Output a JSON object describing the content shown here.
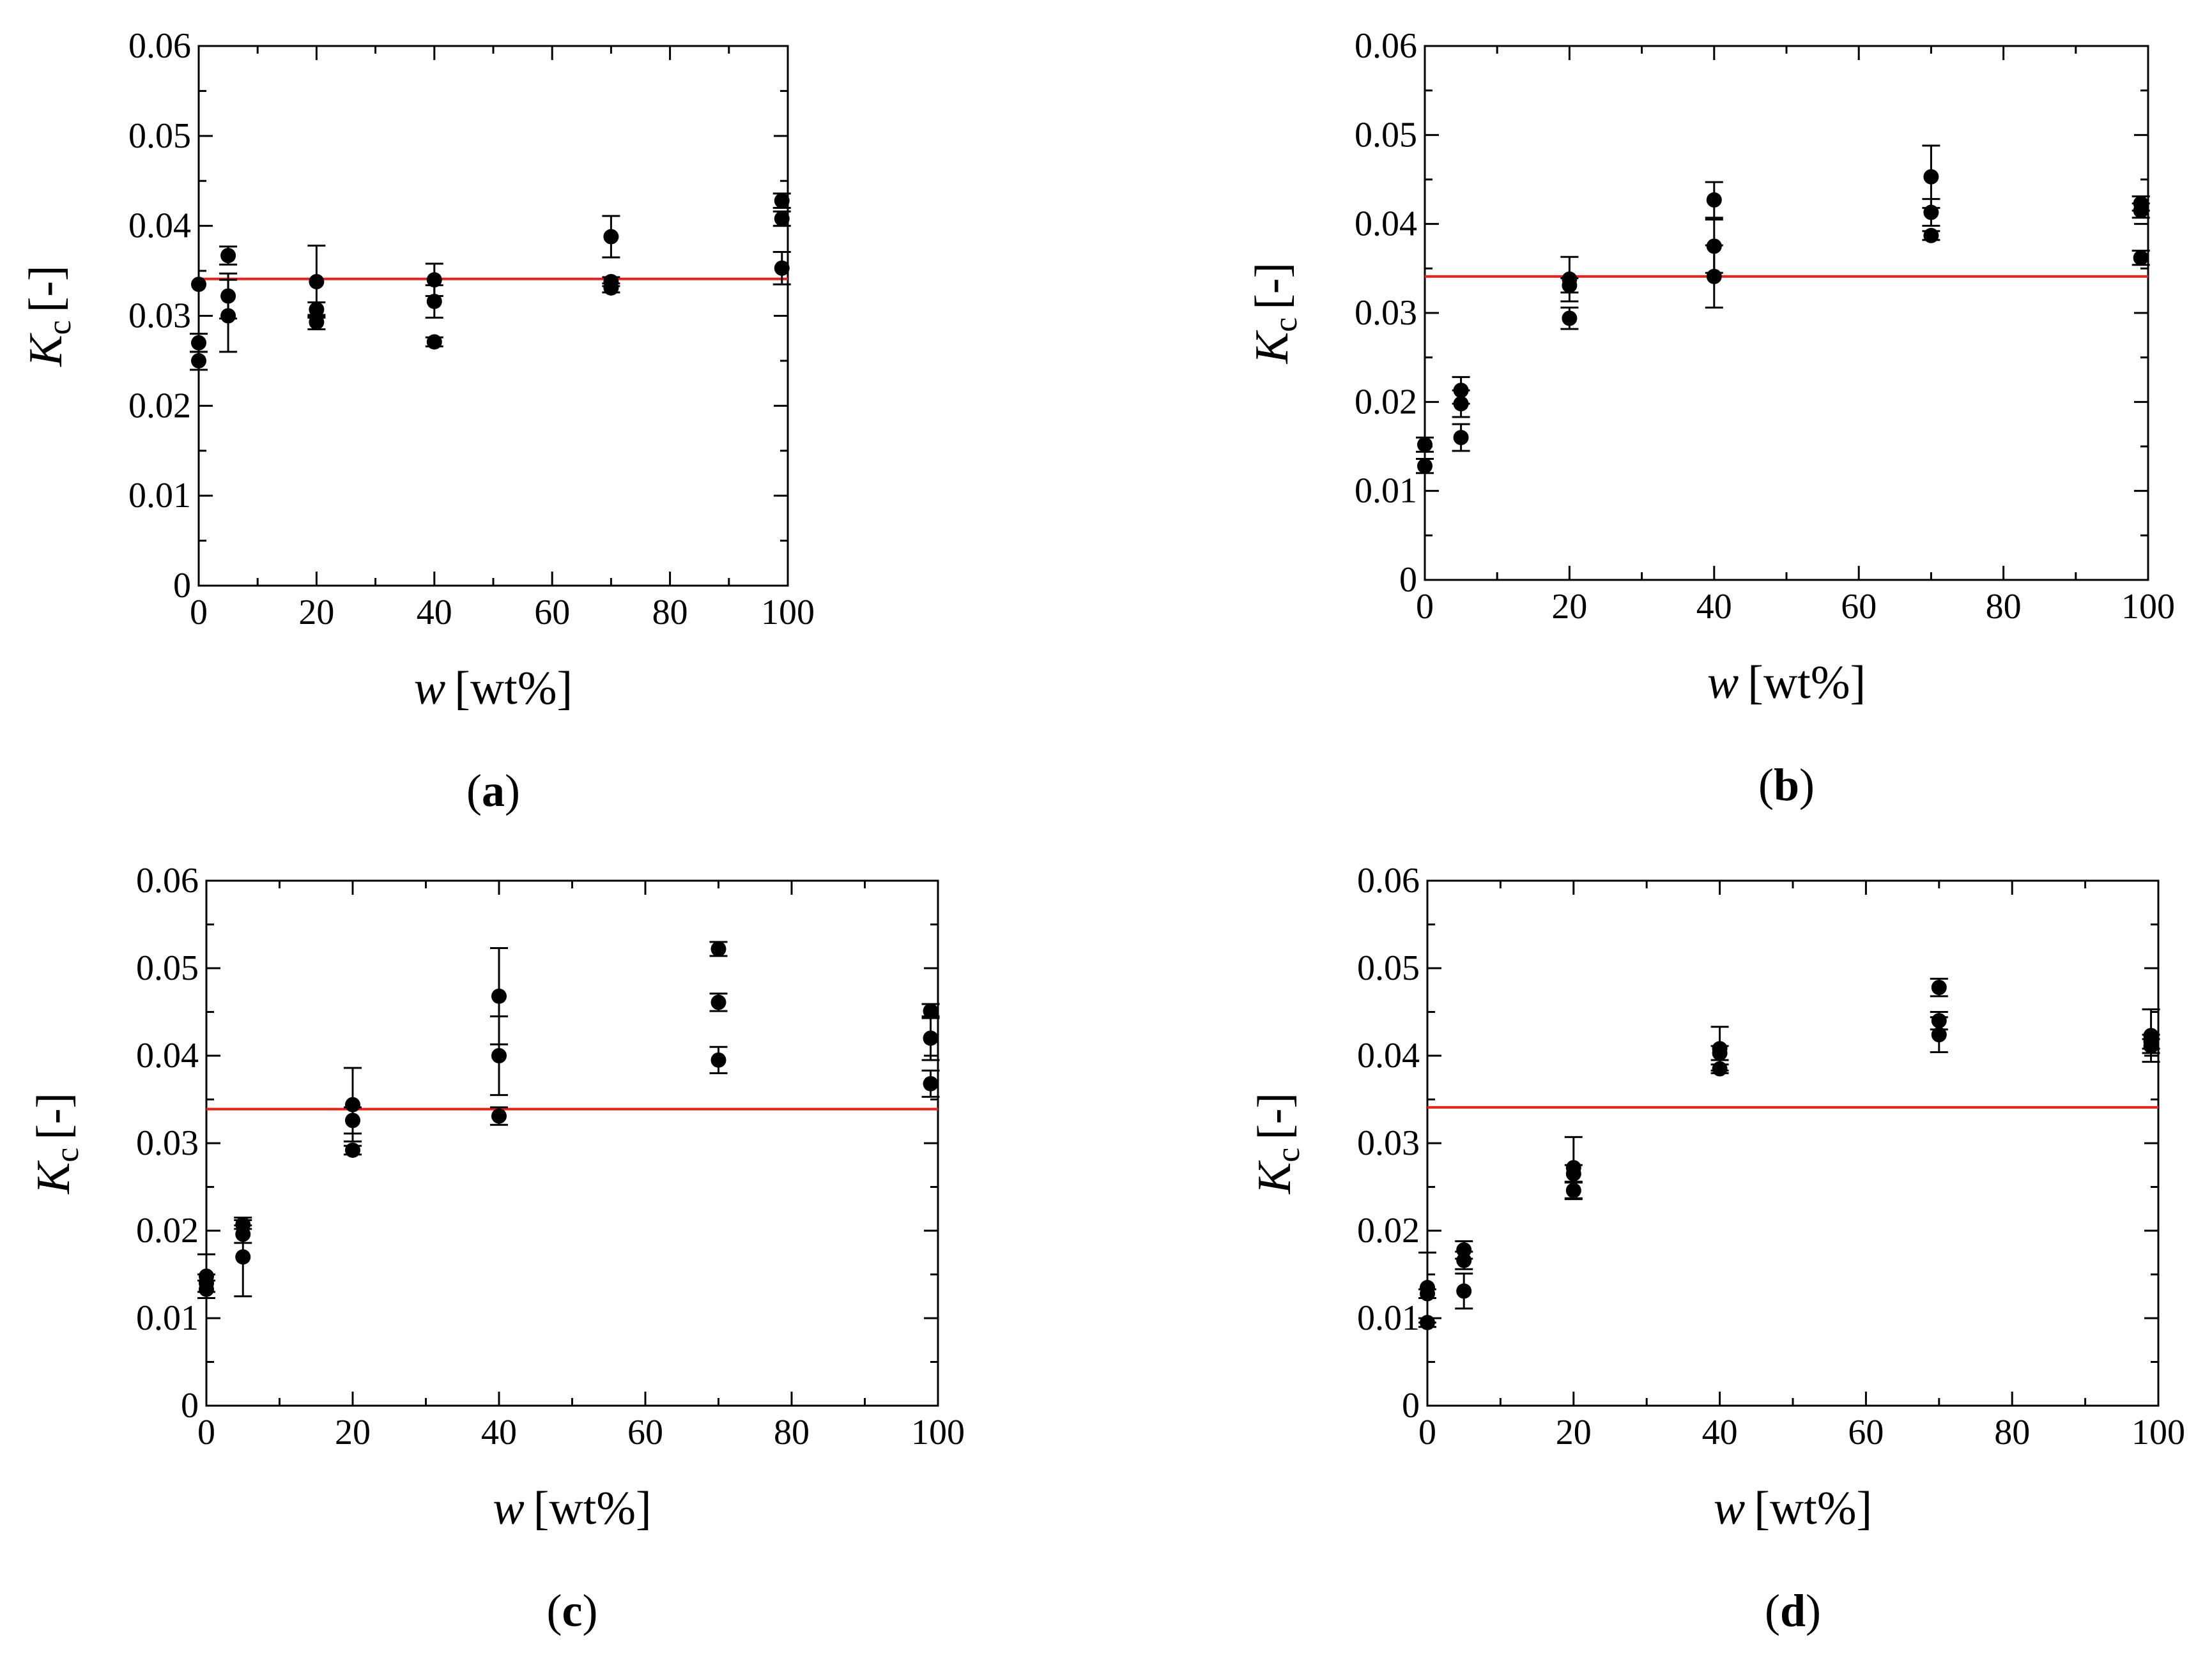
{
  "chart_data": [
    {
      "panel": "a",
      "type": "scatter",
      "caption": {
        "open": "(",
        "label": "a",
        "close": ")"
      },
      "xlabel": {
        "var": "w",
        "unit": "[wt%]"
      },
      "ylabel": {
        "var": "K",
        "sub": "c",
        "unit": "[-]"
      },
      "xlim": [
        0,
        100
      ],
      "ylim": [
        0,
        0.06
      ],
      "xticks": [
        "0",
        "20",
        "40",
        "60",
        "80",
        "100"
      ],
      "yticks": [
        "0",
        "0.01",
        "0.02",
        "0.03",
        "0.04",
        "0.05",
        "0.06"
      ],
      "reference_line": {
        "y": 0.0341,
        "color": "#e8231e"
      },
      "points": [
        {
          "x": 0,
          "y": 0.0335,
          "err": 0
        },
        {
          "x": 0,
          "y": 0.027,
          "err": 0.001
        },
        {
          "x": 0,
          "y": 0.025,
          "err": 0.001
        },
        {
          "x": 5,
          "y": 0.0367,
          "err": 0.001
        },
        {
          "x": 5,
          "y": 0.0322,
          "err": 0.0025
        },
        {
          "x": 5,
          "y": 0.03,
          "err": 0.004
        },
        {
          "x": 20,
          "y": 0.0338,
          "err": 0.004
        },
        {
          "x": 20,
          "y": 0.0307,
          "err": 0.0008
        },
        {
          "x": 20,
          "y": 0.0293,
          "err": 0.0008
        },
        {
          "x": 40,
          "y": 0.034,
          "err": 0.0018
        },
        {
          "x": 40,
          "y": 0.0316,
          "err": 0.0018
        },
        {
          "x": 40,
          "y": 0.0271,
          "err": 0.0005
        },
        {
          "x": 70,
          "y": 0.0388,
          "err": 0.0023
        },
        {
          "x": 70,
          "y": 0.0338,
          "err": 0.0005
        },
        {
          "x": 70,
          "y": 0.0331,
          "err": 0.0005
        },
        {
          "x": 99,
          "y": 0.0428,
          "err": 0.0008
        },
        {
          "x": 99,
          "y": 0.0408,
          "err": 0.0008
        },
        {
          "x": 99,
          "y": 0.0353,
          "err": 0.0018
        }
      ]
    },
    {
      "panel": "b",
      "type": "scatter",
      "caption": {
        "open": "(",
        "label": "b",
        "close": ")"
      },
      "xlabel": {
        "var": "w",
        "unit": "[wt%]"
      },
      "ylabel": {
        "var": "K",
        "sub": "c",
        "unit": "[-]"
      },
      "xlim": [
        0,
        100
      ],
      "ylim": [
        0,
        0.06
      ],
      "xticks": [
        "0",
        "20",
        "40",
        "60",
        "80",
        "100"
      ],
      "yticks": [
        "0",
        "0.01",
        "0.02",
        "0.03",
        "0.04",
        "0.05",
        "0.06"
      ],
      "reference_line": {
        "y": 0.0341,
        "color": "#e8231e"
      },
      "points": [
        {
          "x": 0,
          "y": 0.0152,
          "err": 0.0008
        },
        {
          "x": 0,
          "y": 0.0128,
          "err": 0.0008
        },
        {
          "x": 5,
          "y": 0.0213,
          "err": 0.0015
        },
        {
          "x": 5,
          "y": 0.0198,
          "err": 0.0015
        },
        {
          "x": 5,
          "y": 0.016,
          "err": 0.0015
        },
        {
          "x": 20,
          "y": 0.0338,
          "err": 0.0025
        },
        {
          "x": 20,
          "y": 0.0331,
          "err": 0.0008
        },
        {
          "x": 20,
          "y": 0.0294,
          "err": 0.0012
        },
        {
          "x": 40,
          "y": 0.0427,
          "err": 0.002
        },
        {
          "x": 40,
          "y": 0.0375,
          "err": 0.003
        },
        {
          "x": 40,
          "y": 0.0341,
          "err": 0.0035
        },
        {
          "x": 70,
          "y": 0.0453,
          "err": 0.0035
        },
        {
          "x": 70,
          "y": 0.0413,
          "err": 0.0015
        },
        {
          "x": 70,
          "y": 0.0387,
          "err": 0.0005
        },
        {
          "x": 99,
          "y": 0.0423,
          "err": 0.0008
        },
        {
          "x": 99,
          "y": 0.0415,
          "err": 0.0008
        },
        {
          "x": 99,
          "y": 0.0362,
          "err": 0.0008
        }
      ]
    },
    {
      "panel": "c",
      "type": "scatter",
      "caption": {
        "open": "(",
        "label": "c",
        "close": ")"
      },
      "xlabel": {
        "var": "w",
        "unit": "[wt%]"
      },
      "ylabel": {
        "var": "K",
        "sub": "c",
        "unit": "[-]"
      },
      "xlim": [
        0,
        100
      ],
      "ylim": [
        0,
        0.06
      ],
      "xticks": [
        "0",
        "20",
        "40",
        "60",
        "80",
        "100"
      ],
      "yticks": [
        "0",
        "0.01",
        "0.02",
        "0.03",
        "0.04",
        "0.05",
        "0.06"
      ],
      "reference_line": {
        "y": 0.0339,
        "color": "#e8231e"
      },
      "points": [
        {
          "x": 0,
          "y": 0.0148,
          "err": 0.0025
        },
        {
          "x": 0,
          "y": 0.014,
          "err": 0.001
        },
        {
          "x": 0,
          "y": 0.0133,
          "err": 0.001
        },
        {
          "x": 5,
          "y": 0.0207,
          "err": 0.0005
        },
        {
          "x": 5,
          "y": 0.0196,
          "err": 0.001
        },
        {
          "x": 5,
          "y": 0.017,
          "err": 0.0045
        },
        {
          "x": 20,
          "y": 0.0344,
          "err": 0.0042
        },
        {
          "x": 20,
          "y": 0.0326,
          "err": 0.0015
        },
        {
          "x": 20,
          "y": 0.0292,
          "err": 0.0005
        },
        {
          "x": 40,
          "y": 0.0468,
          "err": 0.0055
        },
        {
          "x": 40,
          "y": 0.04,
          "err": 0.0045
        },
        {
          "x": 40,
          "y": 0.0331,
          "err": 0.001
        },
        {
          "x": 70,
          "y": 0.0522,
          "err": 0.0008
        },
        {
          "x": 70,
          "y": 0.0461,
          "err": 0.001
        },
        {
          "x": 70,
          "y": 0.0395,
          "err": 0.0015
        },
        {
          "x": 99,
          "y": 0.0451,
          "err": 0.0008
        },
        {
          "x": 99,
          "y": 0.042,
          "err": 0.0025
        },
        {
          "x": 99,
          "y": 0.0368,
          "err": 0.0015
        }
      ]
    },
    {
      "panel": "d",
      "type": "scatter",
      "caption": {
        "open": "(",
        "label": "d",
        "close": ")"
      },
      "xlabel": {
        "var": "w",
        "unit": "[wt%]"
      },
      "ylabel": {
        "var": "K",
        "sub": "c",
        "unit": "[-]"
      },
      "xlim": [
        0,
        100
      ],
      "ylim": [
        0,
        0.06
      ],
      "xticks": [
        "0",
        "20",
        "40",
        "60",
        "80",
        "100"
      ],
      "yticks": [
        "0",
        "0.01",
        "0.02",
        "0.03",
        "0.04",
        "0.05",
        "0.06"
      ],
      "reference_line": {
        "y": 0.0341,
        "color": "#e8231e"
      },
      "points": [
        {
          "x": 0,
          "y": 0.0135,
          "err": 0.004
        },
        {
          "x": 0,
          "y": 0.0128,
          "err": 0.0005
        },
        {
          "x": 0,
          "y": 0.0095,
          "err": 0.0005
        },
        {
          "x": 5,
          "y": 0.0178,
          "err": 0.001
        },
        {
          "x": 5,
          "y": 0.0166,
          "err": 0.001
        },
        {
          "x": 5,
          "y": 0.0131,
          "err": 0.002
        },
        {
          "x": 20,
          "y": 0.0272,
          "err": 0.0035
        },
        {
          "x": 20,
          "y": 0.0265,
          "err": 0.001
        },
        {
          "x": 20,
          "y": 0.0246,
          "err": 0.001
        },
        {
          "x": 40,
          "y": 0.0408,
          "err": 0.0025
        },
        {
          "x": 40,
          "y": 0.0403,
          "err": 0.0008
        },
        {
          "x": 40,
          "y": 0.0385,
          "err": 0.0005
        },
        {
          "x": 70,
          "y": 0.0478,
          "err": 0.001
        },
        {
          "x": 70,
          "y": 0.044,
          "err": 0.001
        },
        {
          "x": 70,
          "y": 0.0424,
          "err": 0.002
        },
        {
          "x": 99,
          "y": 0.0423,
          "err": 0.003
        },
        {
          "x": 99,
          "y": 0.0416,
          "err": 0.0008
        },
        {
          "x": 99,
          "y": 0.0411,
          "err": 0.0008
        }
      ]
    }
  ]
}
